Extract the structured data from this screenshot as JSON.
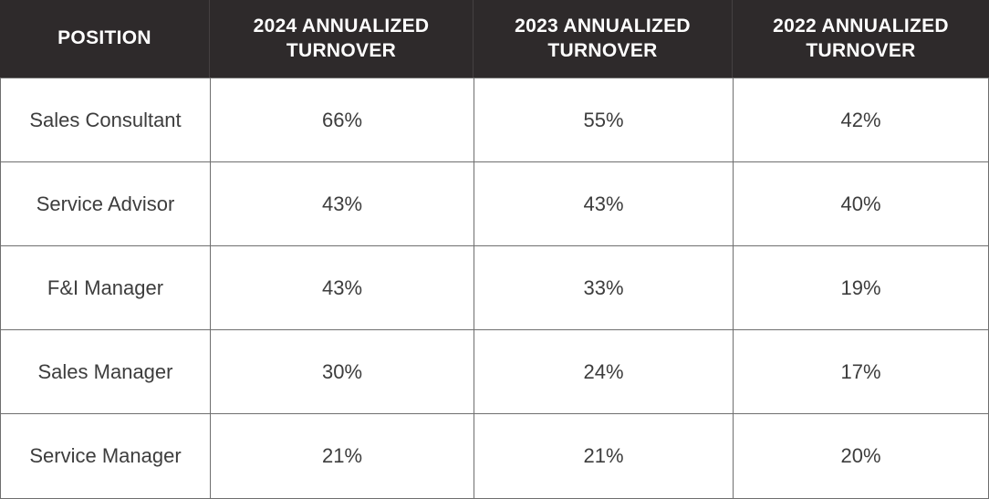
{
  "colors": {
    "header_bg": "#2e2a2b",
    "header_text": "#ffffff",
    "header_divider": "#454041",
    "grid_border": "#6f6f6f",
    "body_bg": "#ffffff",
    "body_text": "#3d3d3d"
  },
  "table": {
    "columns": [
      "POSITION",
      "2024 ANNUALIZED TURNOVER",
      "2023 ANNUALIZED TURNOVER",
      "2022 ANNUALIZED TURNOVER"
    ],
    "rows": [
      {
        "position": "Sales Consultant",
        "values": [
          "66%",
          "55%",
          "42%"
        ]
      },
      {
        "position": "Service Advisor",
        "values": [
          "43%",
          "43%",
          "40%"
        ]
      },
      {
        "position": "F&I Manager",
        "values": [
          "43%",
          "33%",
          "19%"
        ]
      },
      {
        "position": "Sales Manager",
        "values": [
          "30%",
          "24%",
          "17%"
        ]
      },
      {
        "position": "Service Manager",
        "values": [
          "21%",
          "21%",
          "20%"
        ]
      }
    ]
  },
  "chart_data": {
    "type": "table",
    "categories": [
      "Sales Consultant",
      "Service Advisor",
      "F&I Manager",
      "Sales Manager",
      "Service Manager"
    ],
    "series": [
      {
        "name": "2024 Annualized Turnover",
        "unit": "%",
        "values": [
          66,
          43,
          43,
          30,
          21
        ]
      },
      {
        "name": "2023 Annualized Turnover",
        "unit": "%",
        "values": [
          55,
          43,
          33,
          24,
          21
        ]
      },
      {
        "name": "2022 Annualized Turnover",
        "unit": "%",
        "values": [
          42,
          40,
          19,
          17,
          20
        ]
      }
    ]
  }
}
